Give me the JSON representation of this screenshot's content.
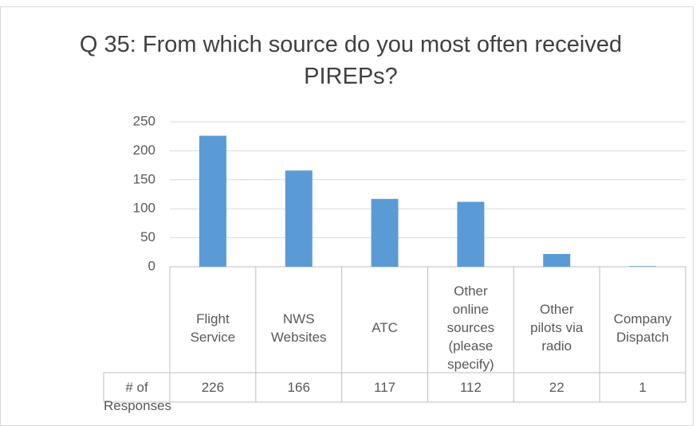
{
  "chart_data": {
    "type": "bar",
    "title": "Q 35: From which source do you most often received PIREPs?",
    "categories": [
      "Flight Service",
      "NWS Websites",
      "ATC",
      "Other online sources (please specify)",
      "Other pilots via radio",
      "Company Dispatch"
    ],
    "series": [
      {
        "name": "# of Responses",
        "color": "#5b9bd5",
        "values": [
          226,
          166,
          117,
          112,
          22,
          1
        ]
      }
    ],
    "ylim": [
      0,
      250
    ],
    "yticks": [
      0,
      50,
      100,
      150,
      200,
      250
    ],
    "grid": true
  }
}
